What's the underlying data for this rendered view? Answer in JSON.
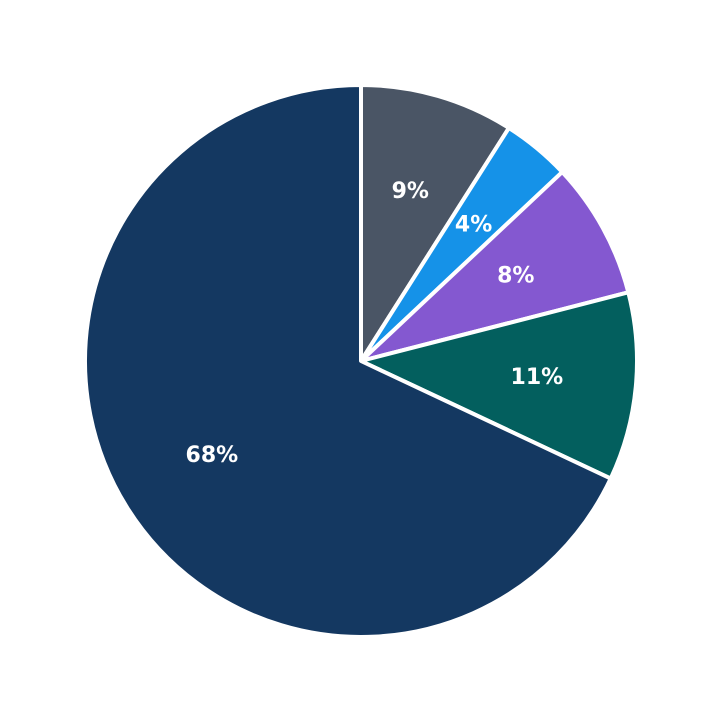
{
  "chart_data": {
    "type": "pie",
    "title": "",
    "start_angle_deg": 90,
    "direction": "clockwise",
    "legend": "none",
    "slices": [
      {
        "label": "9%",
        "value": 9,
        "color": "#4a5565"
      },
      {
        "label": "4%",
        "value": 4,
        "color": "#1592e8"
      },
      {
        "label": "8%",
        "value": 8,
        "color": "#8458d0"
      },
      {
        "label": "11%",
        "value": 11,
        "color": "#035f5e"
      },
      {
        "label": "68%",
        "value": 68,
        "color": "#143861"
      }
    ]
  }
}
